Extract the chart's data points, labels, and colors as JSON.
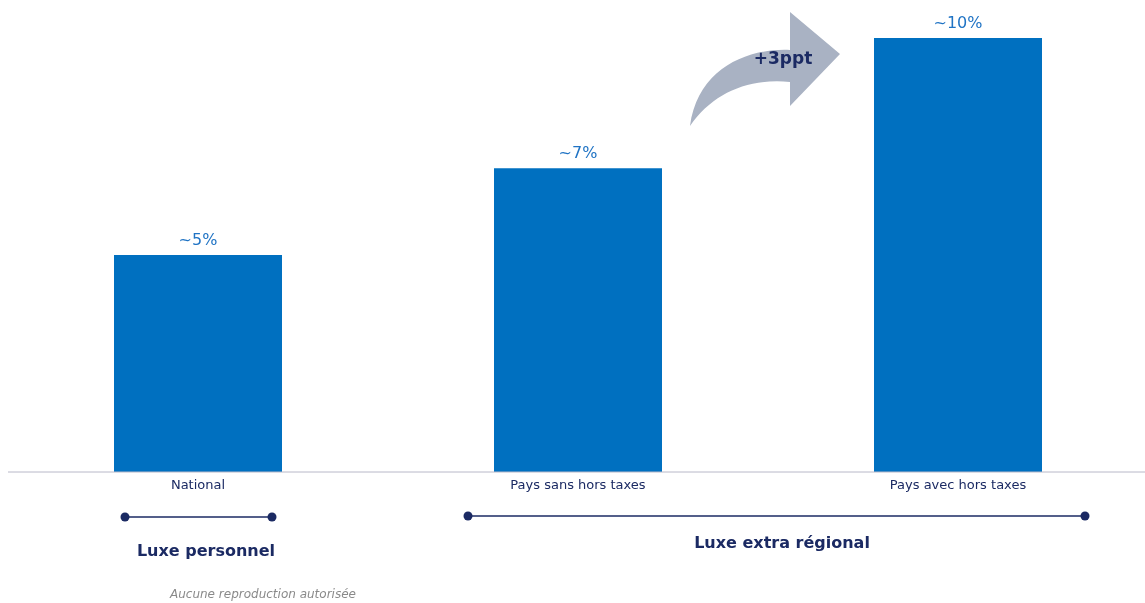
{
  "chart_data": {
    "type": "bar",
    "categories": [
      "National",
      "Pays sans hors taxes",
      "Pays avec hors taxes"
    ],
    "values": [
      5,
      7,
      10
    ],
    "color": "#0070c0",
    "value_labels": [
      "~5%",
      "~7%",
      "~10%"
    ],
    "annotations": [
      "+3ppt",
      "Luxe personnel",
      "Luxe extra régional",
      "Aucune reproduction autorisée"
    ],
    "grid": false,
    "legend": false
  }
}
